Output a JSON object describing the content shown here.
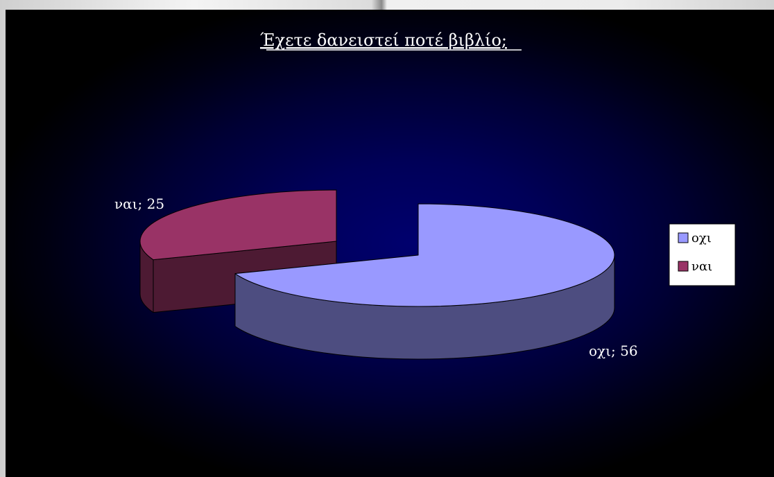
{
  "chart_data": {
    "type": "pie",
    "title": "Έχετε δανειστεί ποτέ βιβλίο;",
    "categories": [
      "οχι",
      "ναι"
    ],
    "values": [
      56,
      25
    ],
    "data_labels": [
      "οχι; 56",
      "ναι; 25"
    ],
    "legend": {
      "entries": [
        "οχι",
        "ναι"
      ],
      "placement": "right"
    },
    "colors": {
      "οχι": {
        "top": "#9999ff",
        "side": "#4d4d80"
      },
      "ναι": {
        "top": "#993366",
        "side": "#4d1a33"
      }
    },
    "style": "3d-exploded"
  }
}
